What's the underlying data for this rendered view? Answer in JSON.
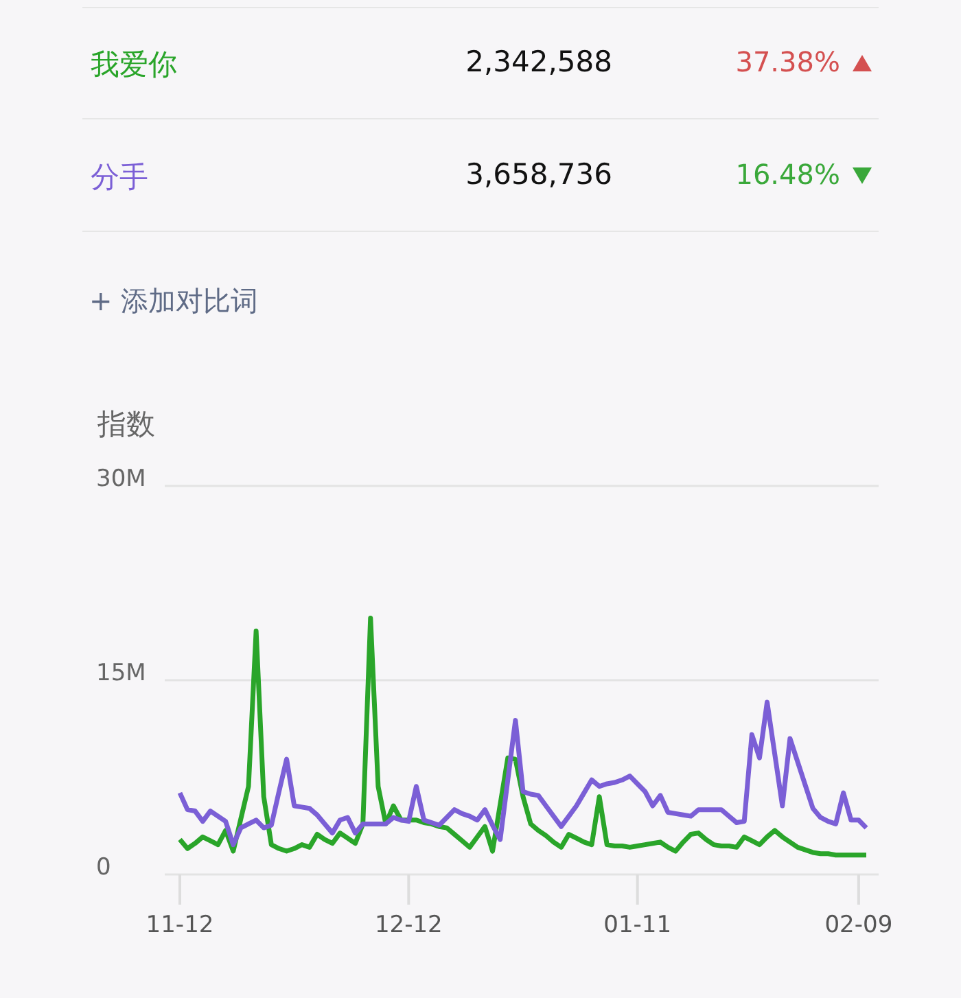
{
  "chart_data": {
    "type": "line",
    "ylabel": "指数",
    "legend": "top",
    "grid": "y",
    "marker": "none",
    "line_style": "solid",
    "categories": [
      "11-12",
      null,
      null,
      null,
      null,
      null,
      null,
      null,
      null,
      null,
      null,
      null,
      null,
      null,
      null,
      null,
      null,
      null,
      null,
      null,
      null,
      null,
      null,
      null,
      null,
      null,
      null,
      null,
      null,
      null,
      "12-12",
      null,
      null,
      null,
      null,
      null,
      null,
      null,
      null,
      null,
      null,
      null,
      null,
      null,
      null,
      null,
      null,
      null,
      null,
      null,
      null,
      null,
      null,
      null,
      null,
      null,
      null,
      null,
      null,
      null,
      "01-11",
      null,
      null,
      null,
      null,
      null,
      null,
      null,
      null,
      null,
      null,
      null,
      null,
      null,
      null,
      null,
      null,
      null,
      null,
      null,
      null,
      null,
      null,
      null,
      null,
      null,
      null,
      null,
      null,
      "02-09",
      null
    ],
    "ylim": [
      0,
      30000000
    ],
    "yticks": [
      {
        "value": 0,
        "label": "0"
      },
      {
        "value": 15000000,
        "label": "15M"
      },
      {
        "value": 30000000,
        "label": "30M"
      }
    ],
    "annotations": [
      "2,342,588",
      "37.38%",
      "3,658,736",
      "16.48%",
      "+ 添加对比词"
    ],
    "series": [
      {
        "name": "我爱你",
        "color": "#2aa52a",
        "values": [
          2700000,
          2000000,
          2400000,
          2900000,
          2600000,
          2300000,
          3400000,
          1800000,
          4300000,
          6800000,
          18800000,
          6000000,
          2300000,
          2000000,
          1800000,
          2000000,
          2300000,
          2100000,
          3100000,
          2700000,
          2400000,
          3200000,
          2800000,
          2400000,
          3900000,
          19800000,
          6800000,
          3900000,
          5300000,
          4200000,
          4200000,
          4200000,
          4000000,
          3900000,
          3700000,
          3600000,
          3100000,
          2600000,
          2100000,
          2900000,
          3700000,
          1800000,
          5400000,
          9000000,
          8900000,
          6000000,
          3900000,
          3400000,
          3000000,
          2500000,
          2100000,
          3100000,
          2800000,
          2500000,
          2300000,
          6000000,
          2300000,
          2200000,
          2200000,
          2100000,
          2200000,
          2300000,
          2400000,
          2500000,
          2100000,
          1800000,
          2500000,
          3100000,
          3200000,
          2700000,
          2300000,
          2200000,
          2200000,
          2100000,
          2900000,
          2600000,
          2300000,
          2900000,
          3400000,
          2900000,
          2500000,
          2100000,
          1900000,
          1700000,
          1600000,
          1600000,
          1500000,
          1500000,
          1500000,
          1500000,
          1500000
        ]
      },
      {
        "name": "分手",
        "color": "#7b5fd6",
        "values": [
          6300000,
          5000000,
          4900000,
          4100000,
          4900000,
          4500000,
          4100000,
          2300000,
          3600000,
          3900000,
          4200000,
          3600000,
          3800000,
          6400000,
          8900000,
          5300000,
          5200000,
          5100000,
          4600000,
          3900000,
          3200000,
          4200000,
          4400000,
          3200000,
          3900000,
          3900000,
          3900000,
          3900000,
          4400000,
          4200000,
          4100000,
          6800000,
          4200000,
          4000000,
          3800000,
          4400000,
          5000000,
          4700000,
          4500000,
          4200000,
          5000000,
          3800000,
          2700000,
          7300000,
          11900000,
          6400000,
          6200000,
          6100000,
          5300000,
          4500000,
          3700000,
          4500000,
          5300000,
          6300000,
          7300000,
          6800000,
          7000000,
          7100000,
          7300000,
          7600000,
          7000000,
          6400000,
          5300000,
          6100000,
          4800000,
          4700000,
          4600000,
          4500000,
          5000000,
          5000000,
          5000000,
          5000000,
          4500000,
          4000000,
          4100000,
          10800000,
          9000000,
          13300000,
          9300000,
          5300000,
          10500000,
          8700000,
          6900000,
          5100000,
          4400000,
          4100000,
          3900000,
          6300000,
          4200000,
          4200000,
          3600000
        ]
      }
    ]
  }
}
